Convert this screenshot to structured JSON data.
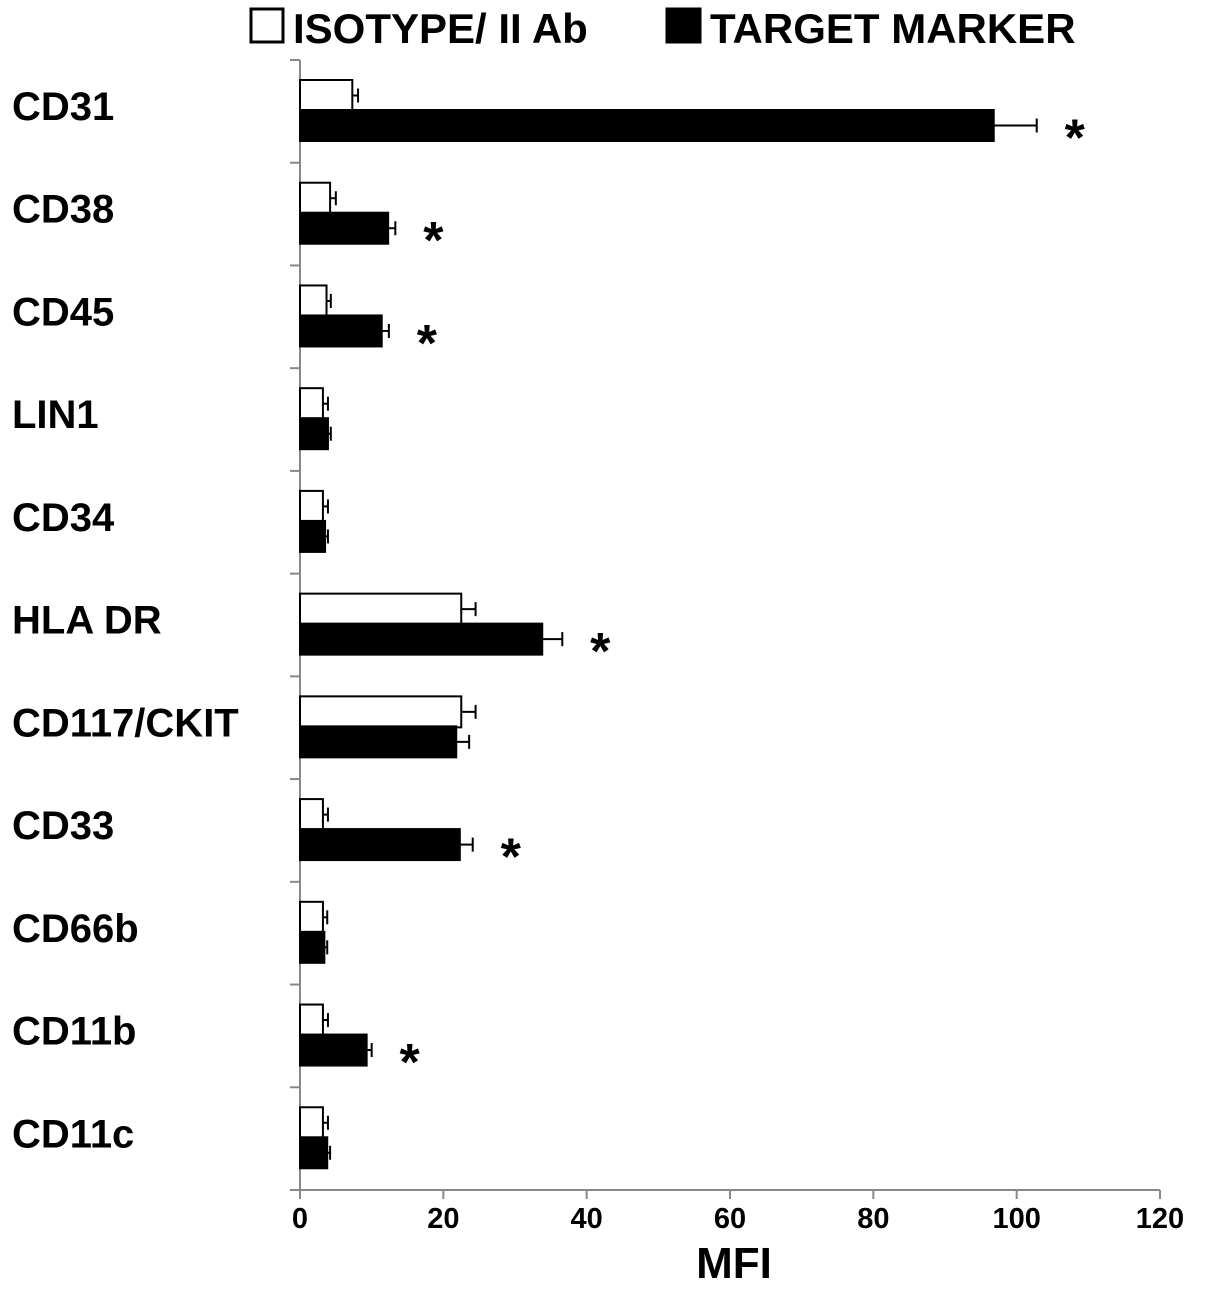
{
  "chart_data": {
    "type": "bar",
    "orientation": "horizontal",
    "categories": [
      "CD31",
      "CD38",
      "CD45",
      "LIN1",
      "CD34",
      "HLA DR",
      "CD117/CKIT",
      "CD33",
      "CD66b",
      "CD11b",
      "CD11c"
    ],
    "series": [
      {
        "name": "ISOTYPE/ II Ab",
        "fill": "#ffffff",
        "values": [
          7.3,
          4.2,
          3.7,
          3.2,
          3.2,
          22.5,
          22.5,
          3.2,
          3.2,
          3.2,
          3.2
        ],
        "errors": [
          0.8,
          0.8,
          0.6,
          0.7,
          0.7,
          2.0,
          2.0,
          0.7,
          0.6,
          0.7,
          0.7
        ]
      },
      {
        "name": "TARGET MARKER",
        "fill": "#000000",
        "values": [
          96.8,
          12.3,
          11.4,
          3.9,
          3.5,
          33.8,
          21.8,
          22.3,
          3.4,
          9.3,
          3.8
        ],
        "errors": [
          6.0,
          1.0,
          1.0,
          0.4,
          0.4,
          2.8,
          1.8,
          1.8,
          0.4,
          0.7,
          0.4
        ]
      }
    ],
    "significance_marker": "*",
    "significant": [
      true,
      true,
      true,
      false,
      false,
      true,
      false,
      true,
      false,
      true,
      false
    ],
    "xlabel": "MFI",
    "ylabel": "",
    "xlim": [
      0,
      120
    ],
    "xticks": [
      0,
      20,
      40,
      60,
      80,
      100,
      120
    ],
    "grid": false,
    "legend_position": "top"
  }
}
